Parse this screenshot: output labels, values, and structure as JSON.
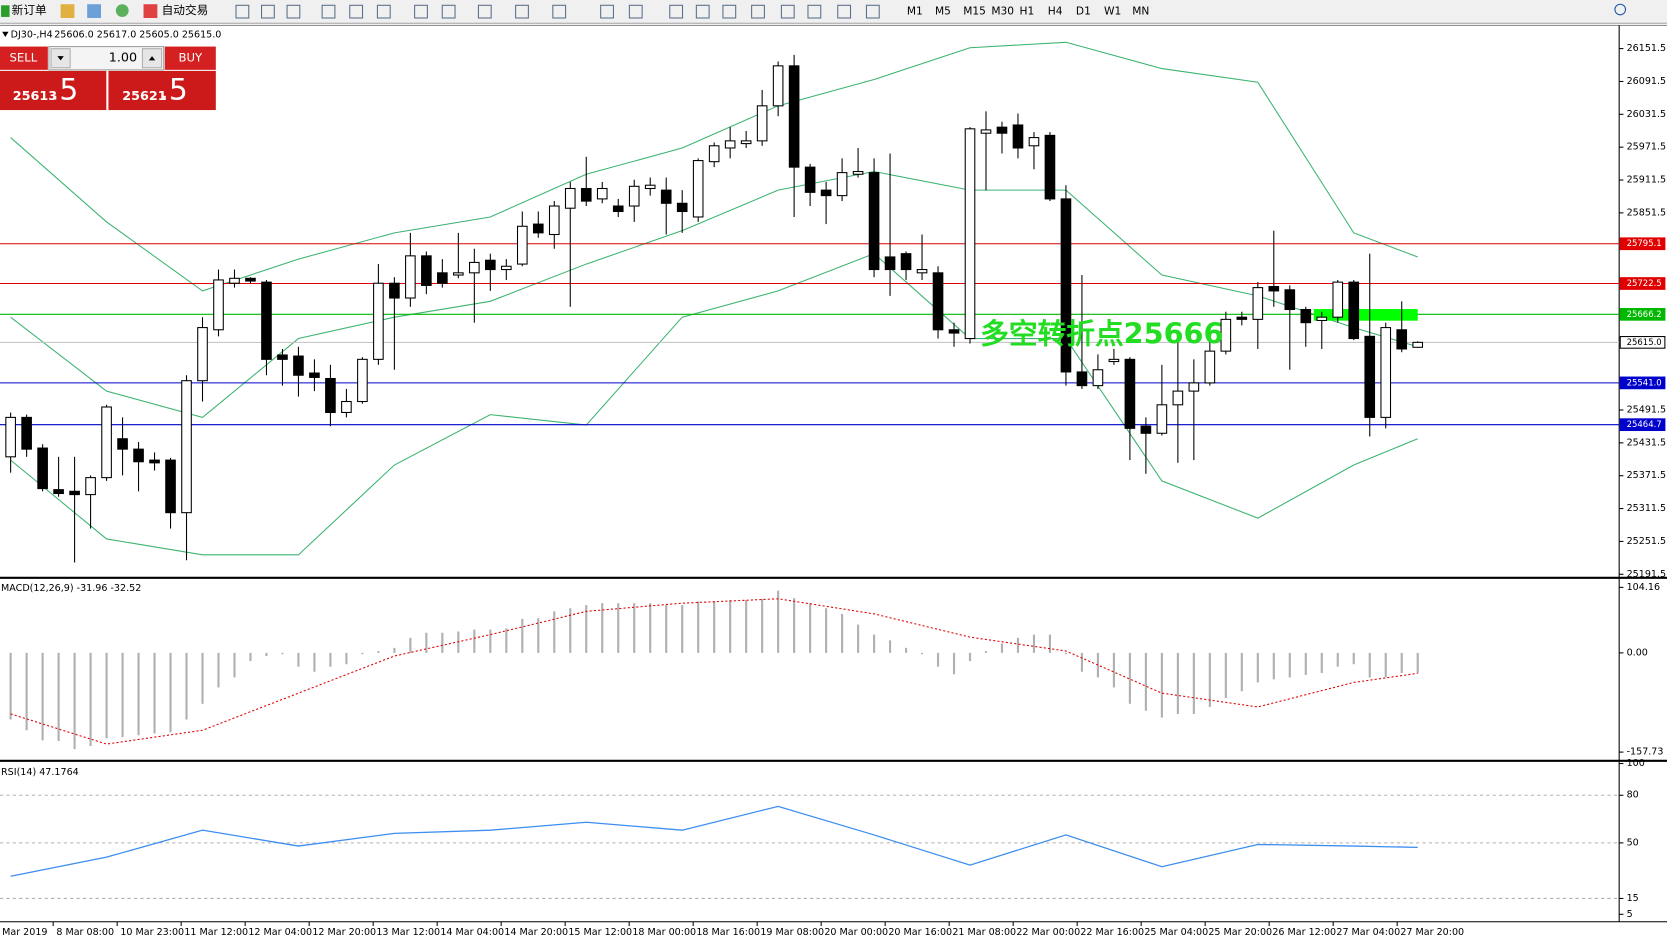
{
  "toolbar": {
    "new_order": "新订单",
    "auto_trading": "自动交易",
    "timeframes": [
      "M1",
      "M5",
      "M15",
      "M30",
      "H1",
      "H4",
      "D1",
      "W1",
      "MN"
    ]
  },
  "trade_panel": {
    "sell": "SELL",
    "buy": "BUY",
    "lots": "1.00",
    "bid_main": "25613",
    "bid_tail": ".5",
    "ask_main": "25621",
    "ask_tail": ".5"
  },
  "chart": {
    "title": "DJ30-,H4",
    "ohlc_text": "25606.0 25617.0 25605.0 25615.0",
    "ylim": [
      25187,
      26190
    ],
    "yticks": [
      26151.5,
      26091.5,
      26031.5,
      25971.5,
      25911.5,
      25851.5,
      25491.5,
      25431.5,
      25371.5,
      25311.5,
      25251.5,
      25191.5
    ],
    "candles": {
      "open": [
        25406,
        25478,
        25422,
        25346,
        25343,
        25337,
        25368,
        25439,
        25420,
        25400,
        25400,
        25304,
        25545,
        25638,
        25723,
        25732,
        25725,
        25592,
        25590,
        25559,
        25549,
        25487,
        25507,
        25584,
        25723,
        25696,
        25773,
        25742,
        25738,
        25742,
        25765,
        25748,
        25758,
        25831,
        25812,
        25860,
        25896,
        25877,
        25864,
        25864,
        25896,
        25893,
        25869,
        25844,
        25945,
        25970,
        25978,
        25983,
        26047,
        26120,
        25935,
        25893,
        25883,
        25922,
        25925,
        25771,
        25777,
        25742,
        25742,
        25638,
        25622,
        25997,
        26008,
        26012,
        25974,
        25993,
        25877,
        25561,
        25536,
        25580,
        25584,
        25462,
        25449,
        25501,
        25526,
        25541,
        25599,
        25661,
        25657,
        25717,
        25711,
        25675,
        25655,
        25661,
        25725,
        25626,
        25478,
        25638,
        25606
      ],
      "high": [
        25487,
        25483,
        25429,
        25406,
        25406,
        25372,
        25501,
        25478,
        25433,
        25414,
        25404,
        25555,
        25661,
        25748,
        25748,
        25734,
        25729,
        25603,
        25607,
        25584,
        25574,
        25530,
        25588,
        25758,
        25734,
        25815,
        25781,
        25767,
        25815,
        25786,
        25777,
        25767,
        25854,
        25854,
        25873,
        25908,
        25954,
        25908,
        25877,
        25912,
        25916,
        25916,
        25893,
        25951,
        25980,
        26008,
        26001,
        26076,
        26128,
        26140,
        25941,
        25908,
        25951,
        25970,
        25951,
        25960,
        25781,
        25812,
        25754,
        25651,
        26008,
        26037,
        26018,
        26033,
        25999,
        25999,
        25902,
        25738,
        25593,
        25603,
        25588,
        25478,
        25574,
        25619,
        25584,
        25622,
        25671,
        25671,
        25725,
        25819,
        25719,
        25680,
        25671,
        25729,
        25729,
        25777,
        25651,
        25690,
        25617
      ],
      "low": [
        25377,
        25406,
        25343,
        25333,
        25213,
        25275,
        25362,
        25372,
        25343,
        25381,
        25275,
        25217,
        25507,
        25626,
        25715,
        25723,
        25555,
        25536,
        25516,
        25526,
        25462,
        25478,
        25503,
        25574,
        25565,
        25680,
        25703,
        25715,
        25732,
        25651,
        25709,
        25729,
        25754,
        25806,
        25786,
        25680,
        25864,
        25869,
        25844,
        25835,
        25883,
        25812,
        25815,
        25835,
        25935,
        25951,
        25970,
        25974,
        26028,
        25844,
        25864,
        25831,
        25873,
        25916,
        25734,
        25700,
        25729,
        25729,
        25622,
        25607,
        25613,
        25893,
        25960,
        25951,
        25931,
        25873,
        25536,
        25530,
        25530,
        25574,
        25400,
        25375,
        25445,
        25395,
        25400,
        25536,
        25593,
        25646,
        25603,
        25680,
        25565,
        25607,
        25603,
        25651,
        25619,
        25443,
        25458,
        25597,
        25605
      ],
      "close": [
        25478,
        25420,
        25348,
        25339,
        25337,
        25368,
        25497,
        25420,
        25397,
        25395,
        25304,
        25545,
        25642,
        25729,
        25732,
        25727,
        25584,
        25584,
        25555,
        25551,
        25487,
        25507,
        25584,
        25723,
        25696,
        25773,
        25719,
        25723,
        25742,
        25761,
        25748,
        25754,
        25827,
        25815,
        25864,
        25896,
        25873,
        25896,
        25854,
        25900,
        25902,
        25869,
        25854,
        25947,
        25974,
        25983,
        25983,
        26047,
        26120,
        25935,
        25889,
        25883,
        25925,
        25927,
        25748,
        25748,
        25748,
        25748,
        25638,
        25632,
        26005,
        26003,
        25997,
        25970,
        25989,
        25877,
        25561,
        25536,
        25565,
        25584,
        25458,
        25449,
        25501,
        25526,
        25541,
        25599,
        25657,
        25657,
        25715,
        25709,
        25675,
        25651,
        25661,
        25725,
        25622,
        25478,
        25642,
        25603,
        25615
      ]
    },
    "bands": {
      "x": [
        0,
        6,
        12,
        18,
        24,
        30,
        36,
        42,
        48,
        54,
        60,
        66,
        72,
        78,
        84,
        88
      ],
      "upper": [
        25989,
        25835,
        25709,
        25767,
        25815,
        25844,
        25922,
        25970,
        26047,
        26095,
        26153,
        26163,
        26115,
        26090,
        25815,
        25771
      ],
      "middle": [
        25661,
        25526,
        25478,
        25622,
        25661,
        25690,
        25758,
        25819,
        25893,
        25927,
        25893,
        25893,
        25738,
        25700,
        25642,
        25607
      ],
      "lower": [
        25400,
        25256,
        25227,
        25227,
        25391,
        25483,
        25464,
        25661,
        25709,
        25777,
        25622,
        25622,
        25362,
        25294,
        25391,
        25439
      ]
    },
    "levels": [
      {
        "value": 25795.1,
        "color": "#e00000"
      },
      {
        "value": 25722.5,
        "color": "#e00000"
      },
      {
        "value": 25666.2,
        "color": "#00b800"
      },
      {
        "value": 25615,
        "label": "25615.0",
        "color": "#c0c0c0"
      },
      {
        "value": 25541,
        "label": "25541.0",
        "color": "#0000cd"
      },
      {
        "value": 25464.7,
        "color": "#0000cd"
      }
    ],
    "annotation": "多空转折点25666",
    "xlabels": [
      "Mar 2019",
      "8 Mar 08:00",
      "10 Mar 23:00",
      "11 Mar 12:00",
      "12 Mar 04:00",
      "12 Mar 20:00",
      "13 Mar 12:00",
      "14 Mar 04:00",
      "14 Mar 20:00",
      "15 Mar 12:00",
      "18 Mar 00:00",
      "18 Mar 16:00",
      "19 Mar 08:00",
      "20 Mar 00:00",
      "20 Mar 16:00",
      "21 Mar 08:00",
      "22 Mar 00:00",
      "22 Mar 16:00",
      "25 Mar 04:00",
      "25 Mar 20:00",
      "26 Mar 12:00",
      "27 Mar 04:00",
      "27 Mar 20:00"
    ]
  },
  "macd": {
    "title": "MACD(12,26,9) -31.96 -32.52",
    "ylim": [
      -170,
      116
    ],
    "yticks": [
      104.16,
      {
        "value": 0,
        "label": "0.00"
      },
      -157.73
    ],
    "histogram": [
      -106,
      -123,
      -139,
      -140,
      -153,
      -148,
      -136,
      -134,
      -131,
      -128,
      -126,
      -106,
      -81,
      -55,
      -39,
      -13,
      -5,
      -2,
      -22,
      -30,
      -22,
      -18,
      -2,
      3,
      8,
      24,
      32,
      32,
      34,
      37,
      37,
      39,
      54,
      55,
      66,
      71,
      76,
      79,
      79,
      79,
      79,
      76,
      76,
      82,
      82,
      84,
      84,
      86,
      99,
      87,
      79,
      71,
      62,
      45,
      29,
      20,
      8,
      -2,
      -22,
      -34,
      -13,
      3,
      15,
      24,
      29,
      29,
      -2,
      -30,
      -39,
      -55,
      -81,
      -92,
      -103,
      -97,
      -97,
      -86,
      -72,
      -61,
      -47,
      -42,
      -39,
      -35,
      -32,
      -22,
      -18,
      -39,
      -39,
      -32,
      -31.96
    ],
    "signal_x": [
      0,
      6,
      12,
      18,
      24,
      30,
      36,
      42,
      48,
      54,
      60,
      66,
      72,
      78,
      84,
      88
    ],
    "signal": [
      -97,
      -145,
      -123,
      -64,
      -5,
      29,
      66,
      79,
      86,
      62,
      25,
      3,
      -64,
      -86,
      -47,
      -32.52
    ]
  },
  "rsi": {
    "title": "RSI(14) 47.1764",
    "ylim": [
      1,
      101
    ],
    "yticks": [
      100,
      80,
      50,
      15,
      5
    ],
    "levels": [
      80,
      50,
      15
    ],
    "x": [
      0,
      6,
      12,
      18,
      24,
      30,
      36,
      42,
      48,
      54,
      60,
      66,
      72,
      78,
      84,
      88
    ],
    "values": [
      29,
      41,
      58,
      48,
      56,
      58,
      63,
      58,
      73,
      55,
      36,
      55,
      35,
      49,
      48,
      47.1764
    ]
  }
}
